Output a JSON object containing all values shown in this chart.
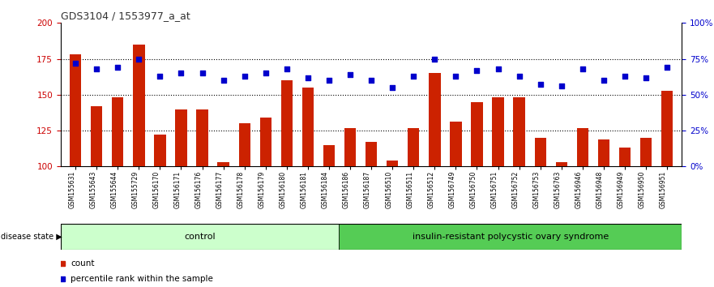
{
  "title": "GDS3104 / 1553977_a_at",
  "samples": [
    "GSM155631",
    "GSM155643",
    "GSM155644",
    "GSM155729",
    "GSM156170",
    "GSM156171",
    "GSM156176",
    "GSM156177",
    "GSM156178",
    "GSM156179",
    "GSM156180",
    "GSM156181",
    "GSM156184",
    "GSM156186",
    "GSM156187",
    "GSM156510",
    "GSM156511",
    "GSM156512",
    "GSM156749",
    "GSM156750",
    "GSM156751",
    "GSM156752",
    "GSM156753",
    "GSM156763",
    "GSM156946",
    "GSM156948",
    "GSM156949",
    "GSM156950",
    "GSM156951"
  ],
  "counts": [
    178,
    142,
    148,
    185,
    122,
    140,
    140,
    103,
    130,
    134,
    160,
    155,
    115,
    127,
    117,
    104,
    127,
    165,
    131,
    145,
    148,
    148,
    120,
    103,
    127,
    119,
    113,
    120,
    153
  ],
  "percentile": [
    72,
    68,
    69,
    75,
    63,
    65,
    65,
    60,
    63,
    65,
    68,
    62,
    60,
    64,
    60,
    55,
    63,
    75,
    63,
    67,
    68,
    63,
    57,
    56,
    68,
    60,
    63,
    62,
    69
  ],
  "control_count": 13,
  "bar_color": "#CC2200",
  "dot_color": "#0000CC",
  "control_label": "control",
  "case_label": "insulin-resistant polycystic ovary syndrome",
  "control_bg": "#CCFFCC",
  "case_bg": "#55CC55",
  "ylim_left": [
    100,
    200
  ],
  "ylim_right": [
    0,
    100
  ],
  "yticks_left": [
    100,
    125,
    150,
    175,
    200
  ],
  "yticks_right": [
    0,
    25,
    50,
    75,
    100
  ],
  "yticklabels_right": [
    "0%",
    "25%",
    "50%",
    "75%",
    "100%"
  ],
  "legend_count_label": "count",
  "legend_pct_label": "percentile rank within the sample",
  "hline_values": [
    125,
    150,
    175
  ],
  "left_tick_color": "#CC0000",
  "right_tick_color": "#0000CC",
  "title_color": "#333333"
}
